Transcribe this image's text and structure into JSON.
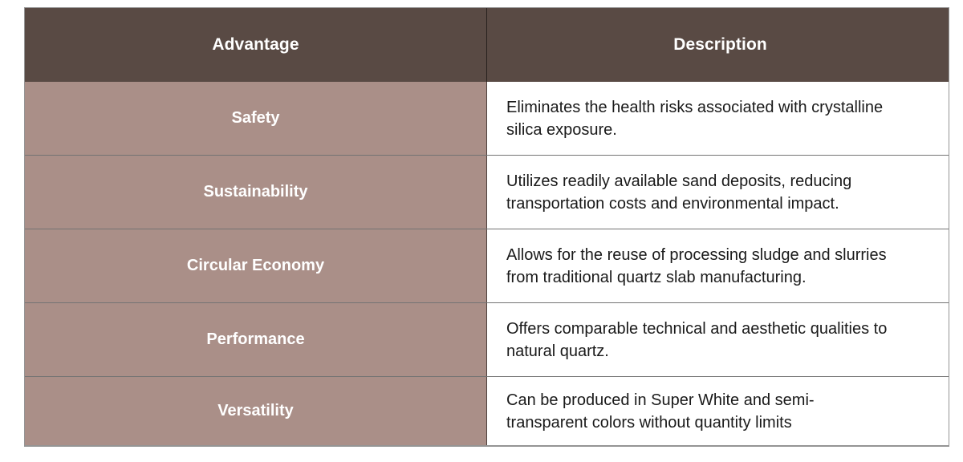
{
  "table": {
    "colors": {
      "header_bg": "#594a44",
      "label_bg": "#aa8f88",
      "header_text": "#ffffff",
      "body_text": "#1a1a1a"
    },
    "header": {
      "advantage": "Advantage",
      "description": "Description"
    },
    "rows": [
      {
        "advantage": "Safety",
        "description": "Eliminates the health risks associated with crystalline\nsilica exposure."
      },
      {
        "advantage": "Sustainability",
        "description": "Utilizes readily available sand deposits, reducing\ntransportation costs and environmental impact."
      },
      {
        "advantage": "Circular Economy",
        "description": "Allows for the reuse of processing sludge and slurries\nfrom traditional quartz slab manufacturing."
      },
      {
        "advantage": "Performance",
        "description": "Offers comparable technical and aesthetic qualities to\nnatural quartz."
      },
      {
        "advantage": "Versatility",
        "description": "Can be produced in Super White and semi-\ntransparent colors without quantity limits"
      }
    ]
  }
}
